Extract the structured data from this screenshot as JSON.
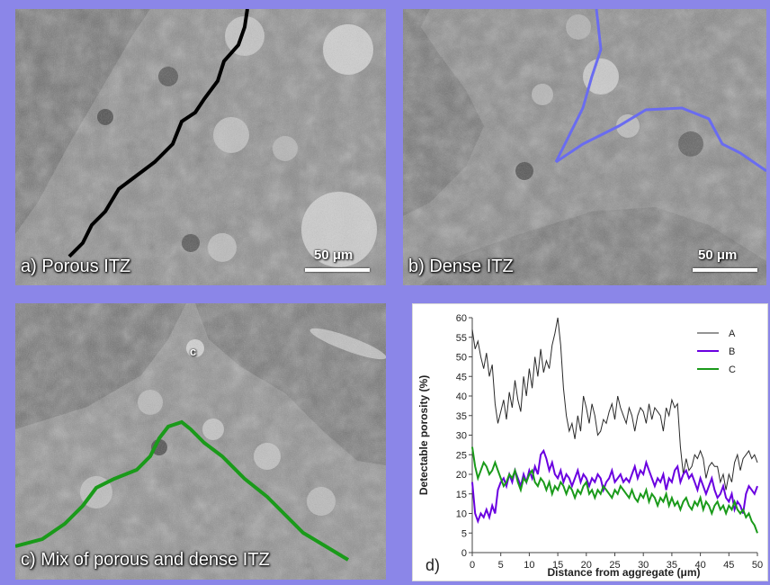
{
  "panels": {
    "a": {
      "caption": "a) Porous ITZ",
      "scale_label": "50 μm",
      "line_color": "#000000"
    },
    "b": {
      "caption": "b) Dense ITZ",
      "scale_label": "50 μm",
      "line_color": "#6a6cf0"
    },
    "c": {
      "caption": "c) Mix of porous and dense ITZ",
      "point_label": "c",
      "line_color": "#1a9a1a"
    }
  },
  "chart_panel_label": "d)",
  "chart_data": {
    "type": "line",
    "ylabel": "Detectable porosity (%)",
    "xlabel": "Distance from aggregate (μm)",
    "xlim": [
      0,
      50
    ],
    "ylim": [
      0,
      60
    ],
    "xticks": [
      0,
      5,
      10,
      15,
      20,
      25,
      30,
      35,
      40,
      45,
      50
    ],
    "yticks": [
      0,
      5,
      10,
      15,
      20,
      25,
      30,
      35,
      40,
      45,
      50,
      55,
      60
    ],
    "grid": false,
    "legend_position": "top-right",
    "series": [
      {
        "name": "A",
        "color": "#2a2a2a",
        "x": [
          0,
          0.5,
          1,
          1.5,
          2,
          2.5,
          3,
          3.5,
          4,
          4.5,
          5,
          5.5,
          6,
          6.5,
          7,
          7.5,
          8,
          8.5,
          9,
          9.5,
          10,
          10.5,
          11,
          11.5,
          12,
          12.5,
          13,
          13.5,
          14,
          14.5,
          15,
          15.5,
          16,
          16.5,
          17,
          17.5,
          18,
          18.5,
          19,
          19.5,
          20,
          20.5,
          21,
          21.5,
          22,
          22.5,
          23,
          23.5,
          24,
          24.5,
          25,
          25.5,
          26,
          26.5,
          27,
          27.5,
          28,
          28.5,
          29,
          29.5,
          30,
          30.5,
          31,
          31.5,
          32,
          32.5,
          33,
          33.5,
          34,
          34.5,
          35,
          35.5,
          36,
          36.5,
          37,
          37.5,
          38,
          38.5,
          39,
          39.5,
          40,
          40.5,
          41,
          41.5,
          42,
          42.5,
          43,
          43.5,
          44,
          44.5,
          45,
          45.5,
          46,
          46.5,
          47,
          47.5,
          48,
          48.5,
          49,
          49.5,
          50
        ],
        "y": [
          57,
          52,
          54,
          50,
          47,
          51,
          45,
          48,
          38,
          33,
          36,
          39,
          34,
          41,
          37,
          44,
          39,
          36,
          45,
          40,
          47,
          42,
          50,
          45,
          52,
          46,
          49,
          47,
          53,
          56,
          60,
          53,
          42,
          35,
          31,
          33,
          29,
          35,
          31,
          40,
          37,
          33,
          38,
          35,
          30,
          31,
          34,
          33,
          36,
          38,
          34,
          40,
          37,
          35,
          33,
          37,
          35,
          31,
          35,
          37,
          36,
          33,
          38,
          34,
          37,
          36,
          35,
          31,
          37,
          35,
          39,
          37,
          38,
          27,
          20,
          24,
          21,
          22,
          25,
          24,
          26,
          24,
          19,
          22,
          23,
          22,
          22,
          18,
          20,
          16,
          20,
          18,
          23,
          25,
          21,
          24,
          25,
          26,
          24,
          25,
          23
        ]
      },
      {
        "name": "B",
        "color": "#6a00e0",
        "x": [
          0,
          0.5,
          1,
          1.5,
          2,
          2.5,
          3,
          3.5,
          4,
          4.5,
          5,
          5.5,
          6,
          6.5,
          7,
          7.5,
          8,
          8.5,
          9,
          9.5,
          10,
          10.5,
          11,
          11.5,
          12,
          12.5,
          13,
          13.5,
          14,
          14.5,
          15,
          15.5,
          16,
          16.5,
          17,
          17.5,
          18,
          18.5,
          19,
          19.5,
          20,
          20.5,
          21,
          21.5,
          22,
          22.5,
          23,
          23.5,
          24,
          24.5,
          25,
          25.5,
          26,
          26.5,
          27,
          27.5,
          28,
          28.5,
          29,
          29.5,
          30,
          30.5,
          31,
          31.5,
          32,
          32.5,
          33,
          33.5,
          34,
          34.5,
          35,
          35.5,
          36,
          36.5,
          37,
          37.5,
          38,
          38.5,
          39,
          39.5,
          40,
          40.5,
          41,
          41.5,
          42,
          42.5,
          43,
          43.5,
          44,
          44.5,
          45,
          45.5,
          46,
          46.5,
          47,
          47.5,
          48,
          48.5,
          49,
          49.5,
          50
        ],
        "y": [
          18,
          10,
          8,
          10,
          9,
          11,
          9,
          12,
          10,
          16,
          18,
          19,
          17,
          20,
          18,
          21,
          19,
          17,
          20,
          18,
          21,
          19,
          22,
          20,
          25,
          26,
          24,
          21,
          23,
          20,
          19,
          21,
          18,
          20,
          19,
          17,
          19,
          21,
          18,
          20,
          19,
          17,
          19,
          18,
          20,
          19,
          16,
          18,
          19,
          21,
          18,
          19,
          20,
          18,
          19,
          18,
          20,
          22,
          19,
          21,
          20,
          23,
          21,
          19,
          17,
          19,
          18,
          20,
          16,
          19,
          18,
          21,
          22,
          18,
          20,
          21,
          19,
          20,
          18,
          16,
          19,
          17,
          15,
          17,
          19,
          16,
          14,
          15,
          17,
          14,
          13,
          15,
          11,
          13,
          12,
          10,
          15,
          17,
          16,
          15,
          17
        ]
      },
      {
        "name": "C",
        "color": "#1a9a1a",
        "x": [
          0,
          0.5,
          1,
          1.5,
          2,
          2.5,
          3,
          3.5,
          4,
          4.5,
          5,
          5.5,
          6,
          6.5,
          7,
          7.5,
          8,
          8.5,
          9,
          9.5,
          10,
          10.5,
          11,
          11.5,
          12,
          12.5,
          13,
          13.5,
          14,
          14.5,
          15,
          15.5,
          16,
          16.5,
          17,
          17.5,
          18,
          18.5,
          19,
          19.5,
          20,
          20.5,
          21,
          21.5,
          22,
          22.5,
          23,
          23.5,
          24,
          24.5,
          25,
          25.5,
          26,
          26.5,
          27,
          27.5,
          28,
          28.5,
          29,
          29.5,
          30,
          30.5,
          31,
          31.5,
          32,
          32.5,
          33,
          33.5,
          34,
          34.5,
          35,
          35.5,
          36,
          36.5,
          37,
          37.5,
          38,
          38.5,
          39,
          39.5,
          40,
          40.5,
          41,
          41.5,
          42,
          42.5,
          43,
          43.5,
          44,
          44.5,
          45,
          45.5,
          46,
          46.5,
          47,
          47.5,
          48,
          48.5,
          49,
          49.5,
          50
        ],
        "y": [
          27,
          22,
          19,
          21,
          23,
          22,
          20,
          21,
          23,
          21,
          19,
          17,
          18,
          20,
          19,
          21,
          18,
          16,
          19,
          18,
          20,
          21,
          18,
          17,
          19,
          18,
          16,
          18,
          15,
          17,
          16,
          18,
          17,
          15,
          17,
          16,
          14,
          16,
          15,
          17,
          18,
          15,
          16,
          14,
          16,
          15,
          17,
          16,
          15,
          14,
          16,
          15,
          17,
          16,
          15,
          14,
          16,
          14,
          13,
          15,
          14,
          16,
          13,
          15,
          14,
          12,
          14,
          13,
          15,
          12,
          14,
          12,
          13,
          11,
          13,
          14,
          12,
          11,
          13,
          12,
          14,
          11,
          13,
          12,
          10,
          12,
          13,
          11,
          12,
          10,
          12,
          11,
          13,
          11,
          10,
          11,
          9,
          10,
          8,
          7,
          5
        ]
      }
    ]
  }
}
